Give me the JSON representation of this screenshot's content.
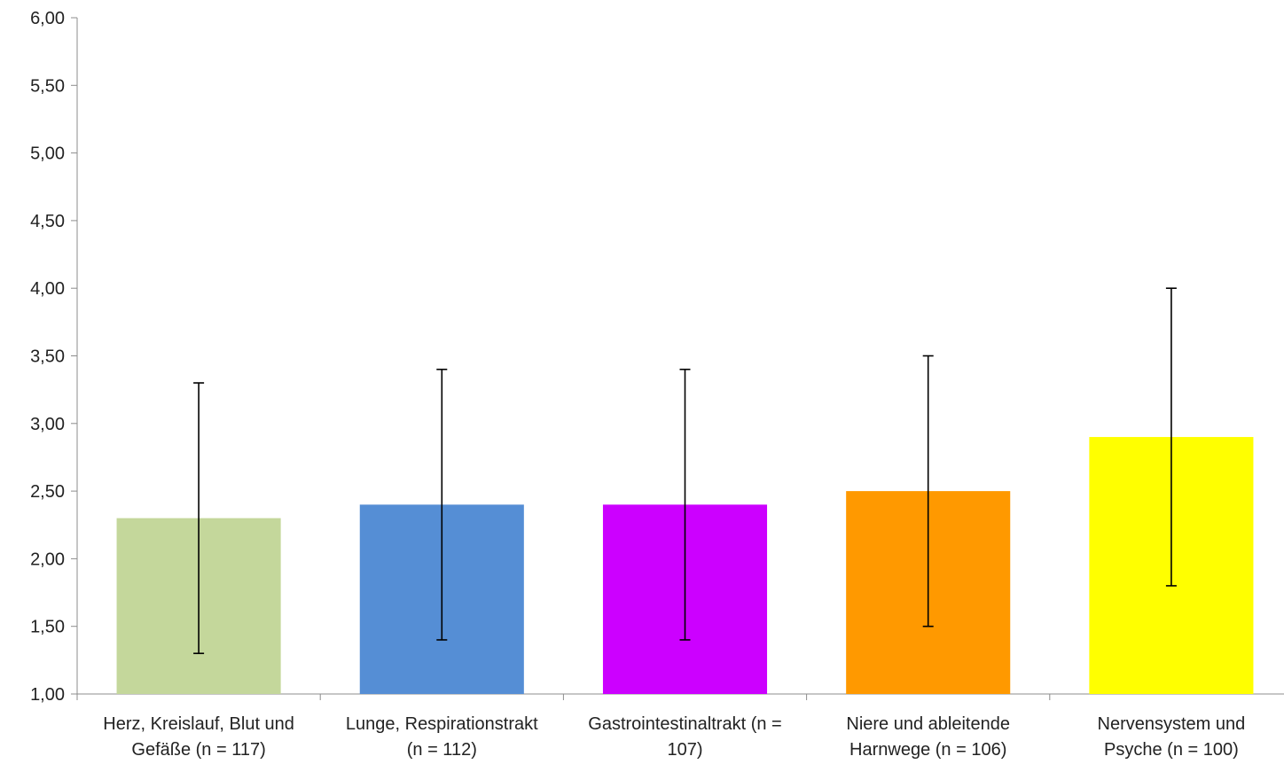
{
  "chart_data": {
    "type": "bar",
    "title": "",
    "xlabel": "",
    "ylabel": "",
    "ylim": [
      1.0,
      6.0
    ],
    "yticks": [
      "1,00",
      "1,50",
      "2,00",
      "2,50",
      "3,00",
      "3,50",
      "4,00",
      "4,50",
      "5,00",
      "5,50",
      "6,00"
    ],
    "grid": false,
    "legend": "none",
    "categories": [
      [
        "Herz, Kreislauf, Blut und",
        "Gefäße (n = 117)"
      ],
      [
        "Lunge, Respirationstrakt",
        "(n = 112)"
      ],
      [
        "Gastrointestinaltrakt (n =",
        "107)"
      ],
      [
        "Niere und ableitende",
        "Harnwege (n = 106)"
      ],
      [
        "Nervensystem und",
        "Psyche (n = 100)"
      ]
    ],
    "values": [
      2.3,
      2.4,
      2.4,
      2.5,
      2.9
    ],
    "error_low": [
      1.3,
      1.4,
      1.4,
      1.5,
      1.8
    ],
    "error_high": [
      3.3,
      3.4,
      3.4,
      3.5,
      4.0
    ],
    "colors": [
      "#c4d79b",
      "#558ed5",
      "#cc00ff",
      "#ff9900",
      "#ffff00"
    ]
  }
}
